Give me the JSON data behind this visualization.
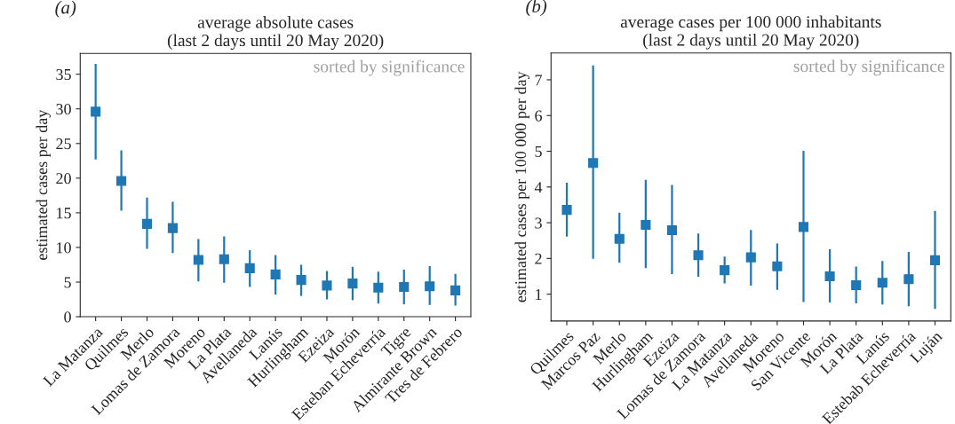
{
  "chart_data": [
    {
      "type": "scatter",
      "title": "average absolute cases\n(last 2 days until 20 May 2020)",
      "ylabel": "estimated cases per day",
      "annotations": [
        "(a)",
        "sorted by significance"
      ],
      "marker": "square",
      "grid": false,
      "categories": [
        "La Matanza",
        "Quilmes",
        "Merlo",
        "Lomas de Zamora",
        "Moreno",
        "La Plata",
        "Avellaneda",
        "Lanús",
        "Hurlingham",
        "Ezeiza",
        "Morón",
        "Esteban Echeverría",
        "Tigre",
        "Almirante Brown",
        "Tres de Febrero"
      ],
      "series": [
        {
          "color": "#1f77b4",
          "values": [
            29.6,
            19.6,
            13.4,
            12.8,
            8.2,
            8.3,
            7.0,
            6.1,
            5.3,
            4.5,
            4.8,
            4.2,
            4.3,
            4.4,
            3.8
          ],
          "errors": [
            [
              22.7,
              36.5
            ],
            [
              15.3,
              24.0
            ],
            [
              9.8,
              17.2
            ],
            [
              9.2,
              16.6
            ],
            [
              5.1,
              11.2
            ],
            [
              4.9,
              11.6
            ],
            [
              4.3,
              9.6
            ],
            [
              3.2,
              8.9
            ],
            [
              3.0,
              7.5
            ],
            [
              2.5,
              6.6
            ],
            [
              2.4,
              7.2
            ],
            [
              1.9,
              6.5
            ],
            [
              1.8,
              6.8
            ],
            [
              1.7,
              7.3
            ],
            [
              1.6,
              6.2
            ]
          ]
        }
      ],
      "ylim": [
        0,
        38
      ],
      "yticks": [
        0,
        5,
        10,
        15,
        20,
        25,
        30,
        35
      ]
    },
    {
      "type": "scatter",
      "title": "average cases per 100 000 inhabitants\n(last 2 days until 20 May 2020)",
      "ylabel": "estimated cases per 100 000 per day",
      "annotations": [
        "(b)",
        "sorted by significance"
      ],
      "marker": "square",
      "grid": false,
      "categories": [
        "Quilmes",
        "Marcos Paz",
        "Merlo",
        "Hurlingham",
        "Ezeiza",
        "Lomas de Zamora",
        "La Matanza",
        "Avellaneda",
        "Moreno",
        "San Vicente",
        "Morón",
        "La Plata",
        "Lanús",
        "Estebab Echeverría",
        "Luján"
      ],
      "series": [
        {
          "color": "#1f77b4",
          "values": [
            3.36,
            4.67,
            2.55,
            2.94,
            2.79,
            2.09,
            1.67,
            2.03,
            1.78,
            2.88,
            1.5,
            1.25,
            1.32,
            1.42,
            1.95
          ],
          "errors": [
            [
              2.61,
              4.12
            ],
            [
              1.99,
              7.4
            ],
            [
              1.88,
              3.28
            ],
            [
              1.73,
              4.2
            ],
            [
              1.56,
              4.06
            ],
            [
              1.49,
              2.7
            ],
            [
              1.3,
              2.05
            ],
            [
              1.24,
              2.8
            ],
            [
              1.12,
              2.42
            ],
            [
              0.78,
              5.01
            ],
            [
              0.77,
              2.26
            ],
            [
              0.74,
              1.77
            ],
            [
              0.71,
              1.93
            ],
            [
              0.66,
              2.18
            ],
            [
              0.59,
              3.33
            ]
          ]
        }
      ],
      "ylim": [
        0.25,
        7.75
      ],
      "yticks": [
        1,
        2,
        3,
        4,
        5,
        6,
        7
      ]
    }
  ]
}
